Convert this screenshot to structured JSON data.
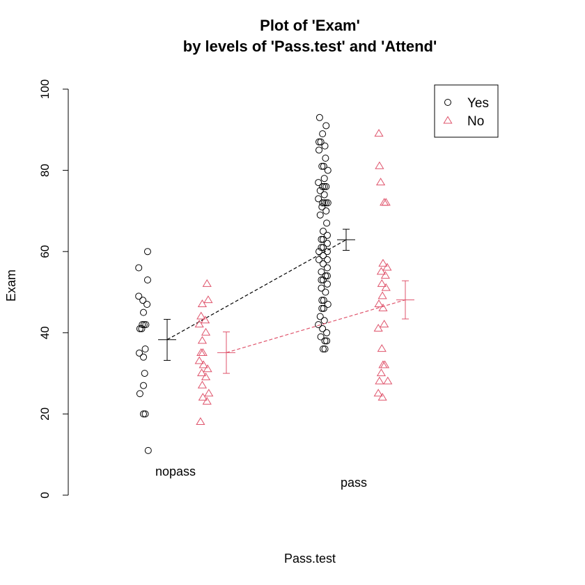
{
  "chart_data": {
    "type": "scatter",
    "title": [
      "Plot of 'Exam'",
      "by levels of 'Pass.test' and 'Attend'"
    ],
    "xlabel": "Pass.test",
    "ylabel": "Exam",
    "ylim": [
      0,
      100
    ],
    "yticks": [
      0,
      20,
      40,
      60,
      80,
      100
    ],
    "categories": [
      "nopass",
      "pass"
    ],
    "legend": {
      "position": "top-right",
      "entries": [
        {
          "label": "Yes",
          "marker": "circle",
          "color": "#000000"
        },
        {
          "label": "No",
          "marker": "triangle",
          "color": "#DF536B"
        }
      ]
    },
    "series": [
      {
        "name": "Yes",
        "color": "#000000",
        "marker": "circle",
        "points": {
          "nopass": [
            60,
            56,
            53,
            49,
            48,
            47,
            45,
            42,
            42,
            42,
            41,
            41,
            36,
            35,
            34,
            30,
            27,
            25,
            20,
            20,
            11
          ],
          "pass": [
            93,
            91,
            89,
            87,
            87,
            86,
            85,
            83,
            81,
            81,
            80,
            78,
            77,
            76,
            76,
            76,
            75,
            74,
            73,
            72,
            72,
            72,
            72,
            71,
            70,
            69,
            67,
            65,
            64,
            63,
            63,
            62,
            61,
            61,
            60,
            60,
            59,
            58,
            58,
            57,
            56,
            55,
            54,
            54,
            53,
            53,
            52,
            51,
            50,
            48,
            48,
            47,
            46,
            46,
            44,
            43,
            42,
            41,
            40,
            39,
            38,
            38,
            36,
            36
          ]
        },
        "mean": {
          "nopass": 38.3,
          "pass": 62.9
        },
        "error": {
          "nopass": {
            "low": 33.2,
            "high": 43.3
          },
          "pass": {
            "low": 60.3,
            "high": 65.5
          }
        }
      },
      {
        "name": "No",
        "color": "#DF536B",
        "marker": "triangle",
        "points": {
          "nopass": [
            52,
            48,
            47,
            44,
            43,
            42,
            40,
            38,
            35,
            35,
            33,
            32,
            31,
            30,
            29,
            27,
            25,
            24,
            23,
            18
          ],
          "pass": [
            89,
            81,
            77,
            72,
            72,
            57,
            56,
            55,
            54,
            52,
            51,
            49,
            47,
            46,
            42,
            41,
            36,
            32,
            32,
            30,
            28,
            28,
            25,
            24
          ]
        },
        "mean": {
          "nopass": 35.1,
          "pass": 48.1
        },
        "error": {
          "nopass": {
            "low": 30.0,
            "high": 40.2
          },
          "pass": {
            "low": 43.4,
            "high": 52.8
          }
        }
      }
    ]
  }
}
